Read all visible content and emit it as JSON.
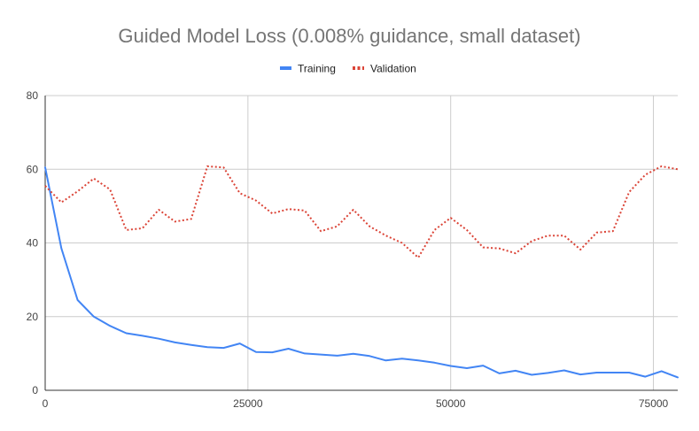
{
  "chart_data": {
    "type": "line",
    "title": "Guided Model Loss (0.008% guidance, small dataset)",
    "xlabel": "",
    "ylabel": "",
    "xlim": [
      0,
      78000
    ],
    "ylim": [
      0,
      80
    ],
    "x_ticks": [
      0,
      25000,
      50000,
      75000
    ],
    "y_ticks": [
      0,
      20,
      40,
      60,
      80
    ],
    "x_tick_labels": [
      "0",
      "25000",
      "50000",
      "75000"
    ],
    "y_tick_labels": [
      "0",
      "20",
      "40",
      "60",
      "80"
    ],
    "grid": true,
    "legend_position": "top",
    "series": [
      {
        "name": "Training",
        "style": "solid",
        "color": "#4285f4",
        "x": [
          0,
          2000,
          4000,
          6000,
          8000,
          10000,
          12000,
          14000,
          16000,
          18000,
          20000,
          22000,
          24000,
          26000,
          28000,
          30000,
          32000,
          34000,
          36000,
          38000,
          40000,
          42000,
          44000,
          46000,
          48000,
          50000,
          52000,
          54000,
          56000,
          58000,
          60000,
          62000,
          64000,
          66000,
          68000,
          70000,
          72000,
          74000,
          76000,
          78000
        ],
        "values": [
          60.5,
          38.5,
          24.5,
          20.0,
          17.5,
          15.5,
          14.8,
          14.0,
          13.0,
          12.3,
          11.7,
          11.5,
          12.7,
          10.4,
          10.3,
          11.3,
          10.0,
          9.7,
          9.4,
          9.9,
          9.3,
          8.1,
          8.6,
          8.1,
          7.5,
          6.6,
          6.0,
          6.7,
          4.6,
          5.3,
          4.2,
          4.7,
          5.4,
          4.3,
          4.8,
          4.8,
          4.8,
          3.7,
          5.2,
          3.5
        ]
      },
      {
        "name": "Validation",
        "style": "dotted",
        "color": "#db4437",
        "x": [
          0,
          2000,
          4000,
          6000,
          8000,
          10000,
          12000,
          14000,
          16000,
          18000,
          20000,
          22000,
          24000,
          26000,
          28000,
          30000,
          32000,
          34000,
          36000,
          38000,
          40000,
          42000,
          44000,
          46000,
          48000,
          50000,
          52000,
          54000,
          56000,
          58000,
          60000,
          62000,
          64000,
          66000,
          68000,
          70000,
          72000,
          74000,
          76000,
          78000
        ],
        "values": [
          55.5,
          51.0,
          54.0,
          57.5,
          54.5,
          43.5,
          44.0,
          49.0,
          45.8,
          46.5,
          60.8,
          60.5,
          53.5,
          51.5,
          48.0,
          49.2,
          48.8,
          43.2,
          44.5,
          49.0,
          44.5,
          42.0,
          40.0,
          36.0,
          43.5,
          46.8,
          43.5,
          38.8,
          38.5,
          37.2,
          40.5,
          42.0,
          42.0,
          38.2,
          42.8,
          43.2,
          53.8,
          58.5,
          60.8,
          60.0
        ]
      }
    ]
  }
}
